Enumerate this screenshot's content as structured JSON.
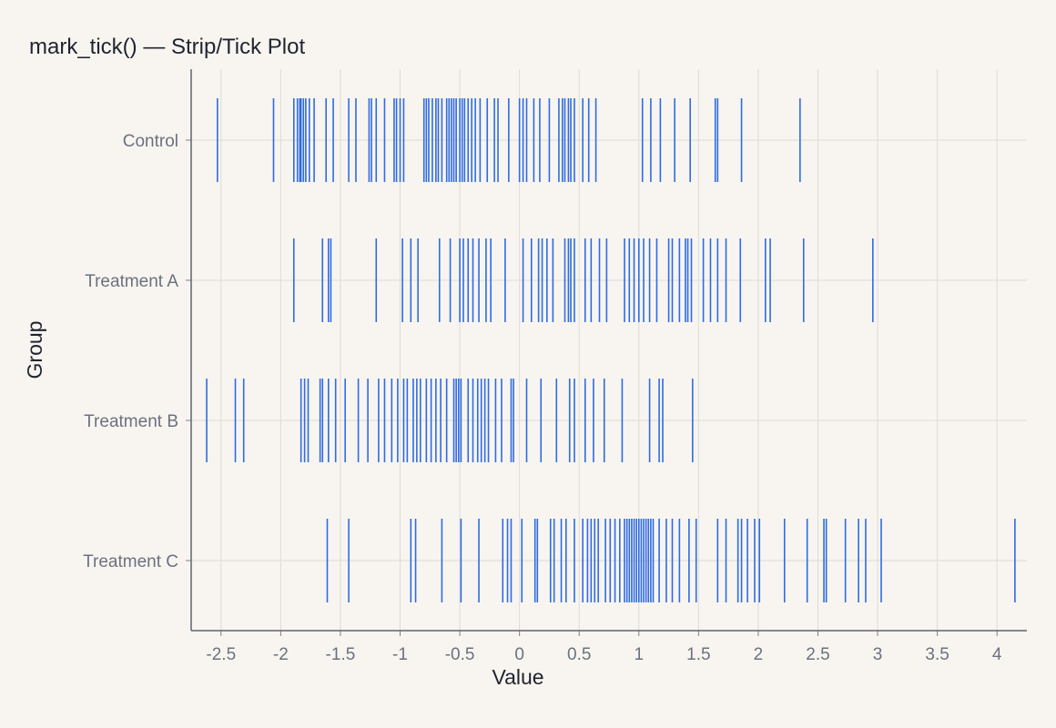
{
  "chart_data": {
    "type": "strip",
    "title": "mark_tick() — Strip/Tick Plot",
    "xlabel": "Value",
    "ylabel": "Group",
    "xlim": [
      -2.75,
      4.25
    ],
    "xticks": [
      -2.5,
      -2,
      -1.5,
      -1,
      -0.5,
      0,
      0.5,
      1,
      1.5,
      2,
      2.5,
      3,
      3.5,
      4
    ],
    "xtick_labels": [
      "-2.5",
      "-2",
      "-1.5",
      "-1",
      "-0.5",
      "0",
      "0.5",
      "1",
      "1.5",
      "2",
      "2.5",
      "3",
      "3.5",
      "4"
    ],
    "categories": [
      "Control",
      "Treatment A",
      "Treatment B",
      "Treatment C"
    ],
    "grid": true,
    "mark_color": "#2f6be3",
    "series": [
      {
        "category": "Control",
        "values": [
          -2.53,
          -2.06,
          -1.89,
          -1.86,
          -1.84,
          -1.83,
          -1.81,
          -1.79,
          -1.76,
          -1.72,
          -1.62,
          -1.56,
          -1.43,
          -1.37,
          -1.26,
          -1.24,
          -1.2,
          -1.13,
          -1.05,
          -1.03,
          -1.0,
          -0.97,
          -0.8,
          -0.78,
          -0.76,
          -0.73,
          -0.7,
          -0.68,
          -0.65,
          -0.61,
          -0.59,
          -0.57,
          -0.55,
          -0.53,
          -0.5,
          -0.48,
          -0.46,
          -0.43,
          -0.4,
          -0.37,
          -0.33,
          -0.27,
          -0.21,
          -0.18,
          -0.09,
          0.0,
          0.03,
          0.06,
          0.12,
          0.17,
          0.25,
          0.33,
          0.36,
          0.38,
          0.41,
          0.43,
          0.46,
          0.53,
          0.58,
          0.64,
          1.03,
          1.1,
          1.18,
          1.3,
          1.43,
          1.64,
          1.66,
          1.86,
          2.35
        ]
      },
      {
        "category": "Treatment A",
        "values": [
          -1.89,
          -1.65,
          -1.6,
          -1.58,
          -1.2,
          -0.98,
          -0.91,
          -0.85,
          -0.67,
          -0.58,
          -0.5,
          -0.47,
          -0.43,
          -0.39,
          -0.34,
          -0.28,
          -0.24,
          -0.12,
          0.03,
          0.1,
          0.16,
          0.19,
          0.23,
          0.28,
          0.38,
          0.41,
          0.43,
          0.46,
          0.55,
          0.6,
          0.67,
          0.73,
          0.88,
          0.92,
          0.96,
          1.0,
          1.04,
          1.09,
          1.15,
          1.25,
          1.28,
          1.34,
          1.39,
          1.41,
          1.44,
          1.54,
          1.6,
          1.66,
          1.73,
          1.85,
          2.06,
          2.1,
          2.38,
          2.96
        ]
      },
      {
        "category": "Treatment B",
        "values": [
          -2.62,
          -2.38,
          -2.31,
          -1.83,
          -1.8,
          -1.77,
          -1.67,
          -1.65,
          -1.6,
          -1.54,
          -1.46,
          -1.35,
          -1.27,
          -1.18,
          -1.13,
          -1.07,
          -1.02,
          -0.97,
          -0.94,
          -0.89,
          -0.86,
          -0.83,
          -0.78,
          -0.74,
          -0.7,
          -0.66,
          -0.61,
          -0.55,
          -0.53,
          -0.51,
          -0.49,
          -0.43,
          -0.39,
          -0.35,
          -0.32,
          -0.29,
          -0.26,
          -0.2,
          -0.15,
          -0.07,
          -0.05,
          0.06,
          0.18,
          0.31,
          0.42,
          0.46,
          0.55,
          0.62,
          0.71,
          0.86,
          1.09,
          1.17,
          1.2,
          1.45
        ]
      },
      {
        "category": "Treatment C",
        "values": [
          -1.61,
          -1.43,
          -0.91,
          -0.87,
          -0.65,
          -0.49,
          -0.34,
          -0.14,
          -0.1,
          -0.07,
          0.02,
          0.13,
          0.15,
          0.26,
          0.29,
          0.35,
          0.39,
          0.46,
          0.53,
          0.57,
          0.6,
          0.63,
          0.66,
          0.72,
          0.76,
          0.8,
          0.84,
          0.88,
          0.9,
          0.92,
          0.94,
          0.96,
          0.98,
          1.0,
          1.02,
          1.04,
          1.06,
          1.08,
          1.1,
          1.12,
          1.17,
          1.23,
          1.28,
          1.34,
          1.42,
          1.48,
          1.66,
          1.73,
          1.83,
          1.86,
          1.91,
          1.97,
          2.01,
          2.22,
          2.41,
          2.55,
          2.57,
          2.73,
          2.84,
          2.9,
          3.03,
          4.15
        ]
      }
    ]
  }
}
